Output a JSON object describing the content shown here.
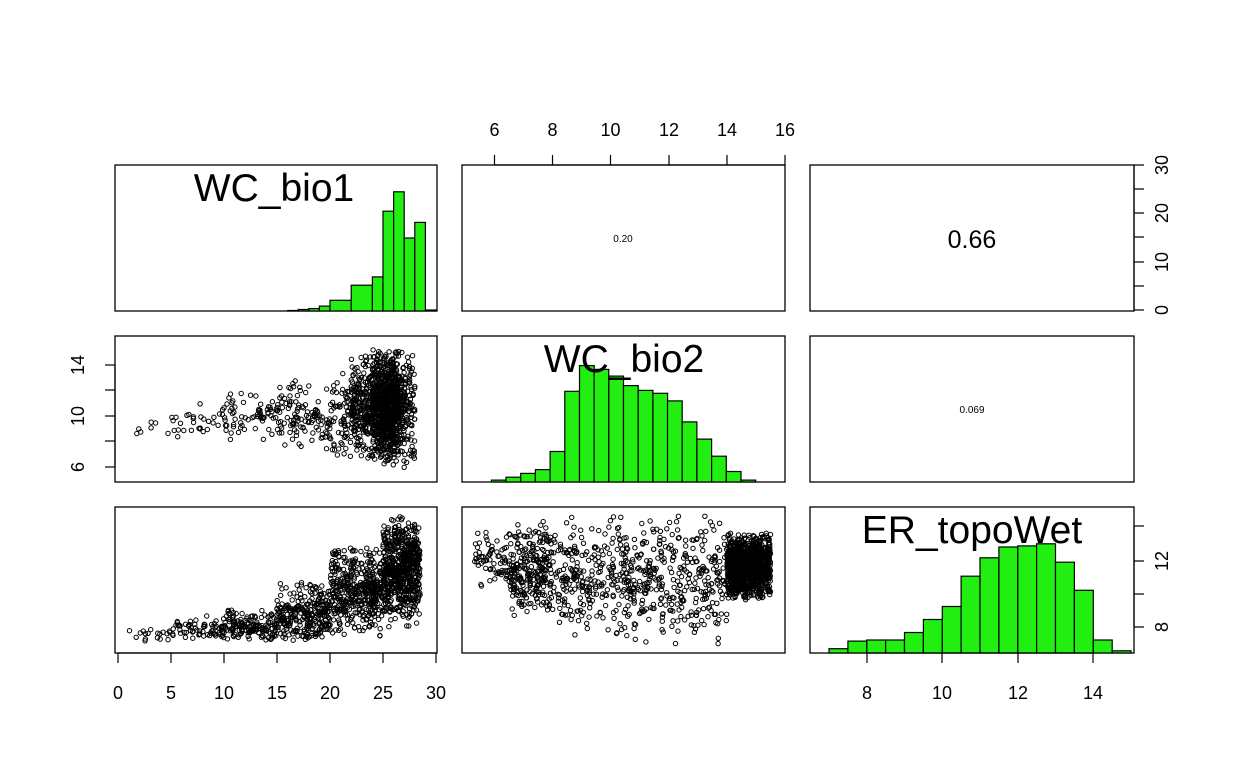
{
  "chart_data": {
    "type": "pairs",
    "variables": [
      "WC_bio1",
      "WC_bio2",
      "ER_topoWet"
    ],
    "hist_fill_color": "#22ee11",
    "point_color": "#000000",
    "correlations": [
      {
        "row": 0,
        "col": 1,
        "label": "0.20",
        "size": "small"
      },
      {
        "row": 0,
        "col": 2,
        "label": "0.66",
        "size": "large"
      },
      {
        "row": 1,
        "col": 2,
        "label": "0.069",
        "size": "small"
      }
    ],
    "axes": {
      "top_WC_bio2": {
        "ticks": [
          "6",
          "8",
          "10",
          "12",
          "14",
          "16"
        ],
        "range": [
          6,
          16
        ]
      },
      "right_hist_count": {
        "ticks": [
          "0",
          "10",
          "20",
          "30"
        ],
        "range": [
          0,
          30
        ]
      },
      "left_WC_bio2": {
        "ticks": [
          "6",
          "10",
          "14"
        ]
      },
      "right_ER_topoWet": {
        "ticks": [
          "8",
          "12"
        ]
      },
      "bottom_WC_bio1": {
        "ticks": [
          "0",
          "5",
          "10",
          "15",
          "20",
          "25",
          "30"
        ],
        "range": [
          0,
          30
        ]
      },
      "bottom_ER_topoWet": {
        "ticks": [
          "8",
          "10",
          "12",
          "14"
        ],
        "range": [
          7,
          15
        ]
      }
    },
    "histograms": {
      "WC_bio1": {
        "xrange": [
          0,
          30
        ],
        "bins": [
          [
            16,
            17,
            0.1
          ],
          [
            17,
            18,
            0.3
          ],
          [
            18,
            19,
            0.5
          ],
          [
            19,
            20,
            1.0
          ],
          [
            20,
            22,
            2.2
          ],
          [
            22,
            24,
            5.3
          ],
          [
            24,
            25,
            7.0
          ],
          [
            25,
            26,
            20.5
          ],
          [
            26,
            27,
            24.5
          ],
          [
            27,
            28,
            15.0
          ],
          [
            28,
            29,
            18.2
          ],
          [
            29,
            30,
            0.2
          ]
        ]
      },
      "WC_bio2": {
        "xrange": [
          5,
          16
        ],
        "bins": [
          [
            6,
            6.5,
            0.2
          ],
          [
            6.5,
            7,
            0.5
          ],
          [
            7,
            7.5,
            0.9
          ],
          [
            7.5,
            8,
            1.3
          ],
          [
            8,
            8.5,
            3.2
          ],
          [
            8.5,
            9,
            9.5
          ],
          [
            9,
            9.5,
            12.2
          ],
          [
            9.5,
            10,
            11.8
          ],
          [
            10,
            10.5,
            11.1
          ],
          [
            10.5,
            11,
            10.1
          ],
          [
            11,
            11.5,
            9.6
          ],
          [
            11.5,
            12,
            9.3
          ],
          [
            12,
            12.5,
            8.5
          ],
          [
            12.5,
            13,
            6.3
          ],
          [
            13,
            13.5,
            4.5
          ],
          [
            13.5,
            14,
            2.7
          ],
          [
            14,
            14.5,
            1.1
          ],
          [
            14.5,
            15,
            0.2
          ]
        ]
      },
      "ER_topoWet": {
        "xrange": [
          7,
          15
        ],
        "bins": [
          [
            7,
            7.5,
            0.4
          ],
          [
            7.5,
            8,
            1.1
          ],
          [
            8,
            8.5,
            1.2
          ],
          [
            8.5,
            9,
            1.2
          ],
          [
            9,
            9.5,
            1.9
          ],
          [
            9.5,
            10,
            3.1
          ],
          [
            10,
            10.5,
            4.3
          ],
          [
            10.5,
            11,
            7.1
          ],
          [
            11,
            11.5,
            8.8
          ],
          [
            11.5,
            12,
            9.8
          ],
          [
            12,
            12.5,
            9.9
          ],
          [
            12.5,
            13,
            10.1
          ],
          [
            13,
            13.5,
            8.4
          ],
          [
            13.5,
            14,
            5.8
          ],
          [
            14,
            14.5,
            1.2
          ],
          [
            14.5,
            15,
            0.2
          ]
        ]
      }
    },
    "scatter_density": {
      "bio1_vs_bio2": {
        "x": [
          [
            1,
            5
          ],
          [
            5,
            10
          ],
          [
            10,
            15
          ],
          [
            15,
            20
          ],
          [
            20,
            25
          ],
          [
            25,
            28
          ],
          [
            22,
            27
          ],
          [
            24,
            26.5
          ]
        ],
        "y": [
          [
            8,
            10
          ],
          [
            8,
            11
          ],
          [
            8,
            12
          ],
          [
            7,
            13
          ],
          [
            6,
            14
          ],
          [
            5.5,
            15.5
          ],
          [
            7,
            15
          ],
          [
            6,
            15.5
          ]
        ]
      },
      "bio1_vs_topoWet": {
        "x": [
          [
            1,
            5
          ],
          [
            5,
            10
          ],
          [
            10,
            15
          ],
          [
            15,
            20
          ],
          [
            20,
            25
          ],
          [
            25,
            28.5
          ]
        ],
        "y": [
          [
            7.2,
            8
          ],
          [
            7.2,
            8.8
          ],
          [
            7.2,
            9
          ],
          [
            7.2,
            10.5
          ],
          [
            7.5,
            12.5
          ],
          [
            8,
            14.2
          ]
        ]
      },
      "bio2_vs_topoWet": {
        "x": [
          [
            5.3,
            6.5
          ],
          [
            6.5,
            8
          ],
          [
            8,
            14
          ],
          [
            14,
            15.5
          ]
        ],
        "y": [
          [
            10,
            13.3
          ],
          [
            8.5,
            13.8
          ],
          [
            7.0,
            14.3
          ],
          [
            9.5,
            13.2
          ]
        ]
      }
    }
  }
}
